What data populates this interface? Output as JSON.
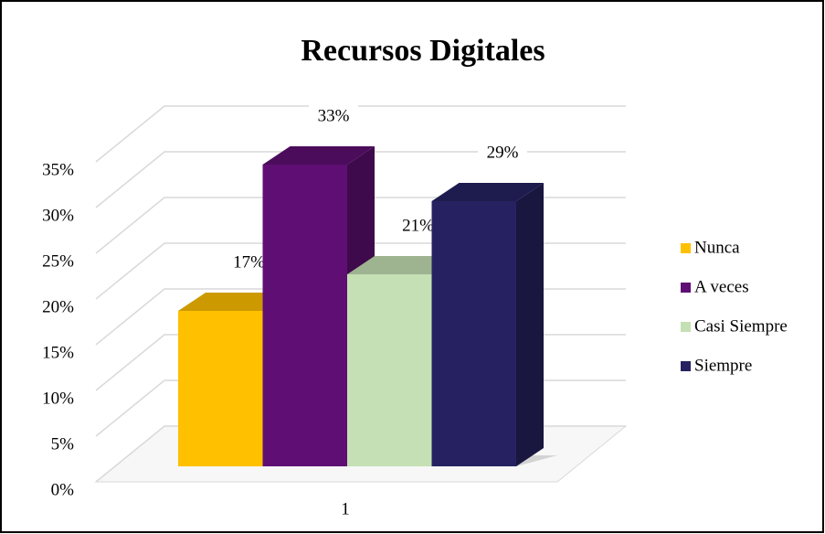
{
  "chart_data": {
    "type": "bar3d",
    "title": "Recursos Digitales",
    "categories": [
      "1"
    ],
    "series": [
      {
        "name": "Nunca",
        "color": "#ffc000",
        "values": [
          17
        ],
        "value_labels": [
          "17%"
        ]
      },
      {
        "name": "A veces",
        "color": "#5f0f73",
        "values": [
          33
        ],
        "value_labels": [
          "33%"
        ]
      },
      {
        "name": "Casi Siempre",
        "color": "#c5e0b4",
        "values": [
          21
        ],
        "value_labels": [
          "21%"
        ]
      },
      {
        "name": "Siempre",
        "color": "#262262",
        "values": [
          29
        ],
        "value_labels": [
          "29%"
        ]
      }
    ],
    "ylim": [
      0,
      35
    ],
    "yticks": [
      {
        "value": 0,
        "label": "0%"
      },
      {
        "value": 5,
        "label": "5%"
      },
      {
        "value": 10,
        "label": "10%"
      },
      {
        "value": 15,
        "label": "15%"
      },
      {
        "value": 20,
        "label": "20%"
      },
      {
        "value": 25,
        "label": "25%"
      },
      {
        "value": 30,
        "label": "30%"
      },
      {
        "value": 35,
        "label": "35%"
      }
    ],
    "grid": true,
    "legend": "right"
  }
}
